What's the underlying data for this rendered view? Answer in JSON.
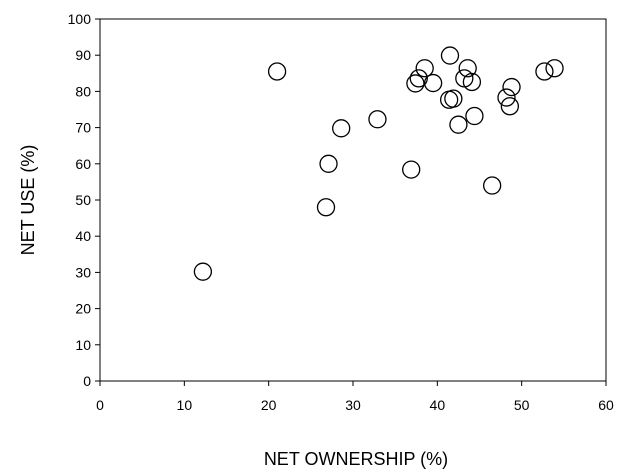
{
  "chart_data": {
    "type": "scatter",
    "xlabel": "NET OWNERSHIP (%)",
    "ylabel": "NET USE (%)",
    "xlim": [
      0,
      60
    ],
    "ylim": [
      0,
      100
    ],
    "xticks": [
      0,
      10,
      20,
      30,
      40,
      50,
      60
    ],
    "yticks": [
      0,
      10,
      20,
      30,
      40,
      50,
      60,
      70,
      80,
      90,
      100
    ],
    "grid": false,
    "legend": "none",
    "marker": "open-circle",
    "points": [
      {
        "x": 12.2,
        "y": 30.2
      },
      {
        "x": 21.0,
        "y": 85.5
      },
      {
        "x": 26.8,
        "y": 48.0
      },
      {
        "x": 27.1,
        "y": 60.0
      },
      {
        "x": 28.6,
        "y": 69.8
      },
      {
        "x": 32.9,
        "y": 72.3
      },
      {
        "x": 36.9,
        "y": 58.4
      },
      {
        "x": 37.4,
        "y": 82.2
      },
      {
        "x": 37.8,
        "y": 83.6
      },
      {
        "x": 38.5,
        "y": 86.4
      },
      {
        "x": 39.5,
        "y": 82.3
      },
      {
        "x": 41.4,
        "y": 77.7
      },
      {
        "x": 41.5,
        "y": 89.9
      },
      {
        "x": 41.9,
        "y": 78.0
      },
      {
        "x": 42.5,
        "y": 70.8
      },
      {
        "x": 43.2,
        "y": 83.6
      },
      {
        "x": 43.6,
        "y": 86.4
      },
      {
        "x": 44.1,
        "y": 82.6
      },
      {
        "x": 44.4,
        "y": 73.2
      },
      {
        "x": 46.5,
        "y": 54.0
      },
      {
        "x": 48.2,
        "y": 78.3
      },
      {
        "x": 48.6,
        "y": 75.9
      },
      {
        "x": 48.8,
        "y": 81.2
      },
      {
        "x": 52.7,
        "y": 85.5
      },
      {
        "x": 53.9,
        "y": 86.4
      }
    ]
  }
}
